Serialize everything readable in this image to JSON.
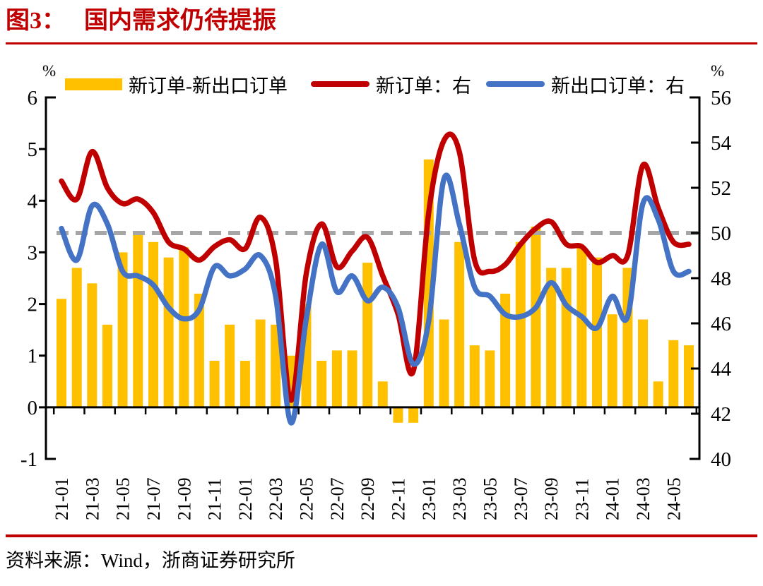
{
  "header": {
    "figure_label": "图3：",
    "title": "国内需求仍待提振"
  },
  "axis_units": {
    "left": "%",
    "right": "%"
  },
  "legend": [
    {
      "label": "新订单-新出口订单",
      "type": "bar",
      "color": "#FFC000"
    },
    {
      "label": "新订单：右",
      "type": "line",
      "color": "#C00000"
    },
    {
      "label": "新出口订单：右",
      "type": "line",
      "color": "#4472C4"
    }
  ],
  "chart_data": {
    "type": "combo",
    "x": [
      "21-01",
      "21-02",
      "21-03",
      "21-04",
      "21-05",
      "21-06",
      "21-07",
      "21-08",
      "21-09",
      "21-10",
      "21-11",
      "21-12",
      "22-01",
      "22-02",
      "22-03",
      "22-04",
      "22-05",
      "22-06",
      "22-07",
      "22-08",
      "22-09",
      "22-10",
      "22-11",
      "22-12",
      "23-01",
      "23-02",
      "23-03",
      "23-04",
      "23-05",
      "23-06",
      "23-07",
      "23-08",
      "23-09",
      "23-10",
      "23-11",
      "23-12",
      "24-01",
      "24-02",
      "24-03",
      "24-04",
      "24-05",
      "24-06"
    ],
    "x_tick_labels": [
      "21-01",
      "21-03",
      "21-05",
      "21-07",
      "21-09",
      "21-11",
      "22-01",
      "22-03",
      "22-05",
      "22-07",
      "22-09",
      "22-11",
      "23-01",
      "23-03",
      "23-05",
      "23-07",
      "23-09",
      "23-11",
      "24-01",
      "24-03",
      "24-05"
    ],
    "series": [
      {
        "name": "新订单-新出口订单",
        "type": "bar",
        "axis": "left",
        "color": "#FFC000",
        "values": [
          2.1,
          2.7,
          2.4,
          1.6,
          3.0,
          3.4,
          3.2,
          2.9,
          3.1,
          2.2,
          0.9,
          1.6,
          0.9,
          1.7,
          1.6,
          1.0,
          2.0,
          0.9,
          1.1,
          1.1,
          2.8,
          0.5,
          -0.3,
          -0.3,
          4.8,
          1.7,
          3.2,
          1.2,
          1.1,
          2.2,
          3.2,
          3.5,
          2.7,
          2.7,
          3.1,
          2.9,
          1.8,
          2.7,
          1.7,
          0.5,
          1.3,
          1.2
        ]
      },
      {
        "name": "新订单",
        "type": "line",
        "axis": "right",
        "color": "#C00000",
        "values": [
          52.3,
          51.5,
          53.6,
          52.0,
          51.3,
          51.5,
          50.9,
          49.6,
          49.3,
          48.8,
          49.4,
          49.7,
          49.3,
          50.7,
          48.8,
          42.6,
          48.2,
          50.4,
          48.5,
          49.2,
          49.8,
          48.1,
          46.4,
          43.9,
          50.9,
          54.1,
          53.6,
          48.8,
          48.3,
          48.6,
          49.5,
          50.2,
          50.5,
          49.5,
          49.4,
          48.7,
          49.0,
          49.0,
          53.0,
          51.1,
          49.6,
          49.5
        ]
      },
      {
        "name": "新出口订单",
        "type": "line",
        "axis": "right",
        "color": "#4472C4",
        "values": [
          50.2,
          48.8,
          51.2,
          50.4,
          48.3,
          48.1,
          47.7,
          46.7,
          46.2,
          46.6,
          48.5,
          48.1,
          48.4,
          49.0,
          47.2,
          41.6,
          46.2,
          49.5,
          47.4,
          48.1,
          47.0,
          47.6,
          46.7,
          44.2,
          46.1,
          52.4,
          50.4,
          47.6,
          47.2,
          46.4,
          46.3,
          46.7,
          47.8,
          46.8,
          46.3,
          45.8,
          47.2,
          46.3,
          51.3,
          50.6,
          48.3,
          48.3
        ]
      }
    ],
    "left_axis": {
      "unit": "%",
      "range": [
        -1,
        6
      ],
      "ticks": [
        6,
        5,
        4,
        3,
        2,
        1,
        0,
        -1
      ]
    },
    "right_axis": {
      "unit": "%",
      "range": [
        40,
        56
      ],
      "ticks": [
        56,
        54,
        52,
        50,
        48,
        46,
        44,
        42,
        40
      ]
    },
    "reference_line": {
      "axis": "right",
      "value": 50,
      "color": "#A6A6A6",
      "style": "dashed"
    },
    "grid": false,
    "legend_position": "top"
  },
  "footer": {
    "source": "资料来源：Wind，浙商证券研究所"
  },
  "colors": {
    "accent_red": "#C00000",
    "bar_gold": "#FFC000",
    "line_blue": "#4472C4",
    "dash_gray": "#A6A6A6"
  }
}
